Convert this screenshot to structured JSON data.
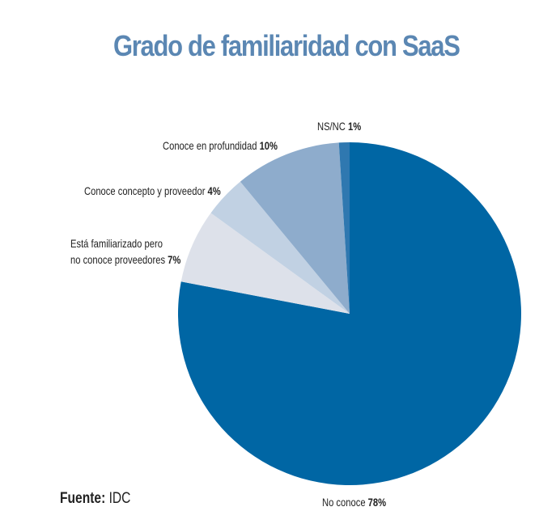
{
  "chart_data": {
    "type": "pie",
    "title": "Grado de familiaridad con SaaS",
    "categories": [
      "No conoce",
      "Está familiarizado pero no conoce proveedores",
      "Conoce concepto y proveedor",
      "Conoce en profundidad",
      "NS/NC"
    ],
    "values": [
      78,
      7,
      4,
      10,
      1
    ],
    "colors": [
      "#0066a4",
      "#dde1ea",
      "#c1d1e3",
      "#8eaccc",
      "#2f78b0"
    ],
    "unit": "%",
    "source": "IDC",
    "legend": "none (direct labels)"
  },
  "title": "Grado de familiaridad con SaaS",
  "labels": {
    "nsnc": {
      "text": "NS/NC ",
      "value": "1%"
    },
    "profundidad": {
      "text": "Conoce en profundidad ",
      "value": "10%"
    },
    "concepto": {
      "text": "Conoce concepto y proveedor ",
      "value": "4%"
    },
    "familiarizado_line1": "Está familiarizado pero",
    "familiarizado_line2": {
      "text": "no conoce proveedores ",
      "value": "7%"
    },
    "no_conoce": {
      "text": "No conoce ",
      "value": "78%"
    }
  },
  "source": {
    "label": "Fuente:",
    "value": " IDC"
  }
}
